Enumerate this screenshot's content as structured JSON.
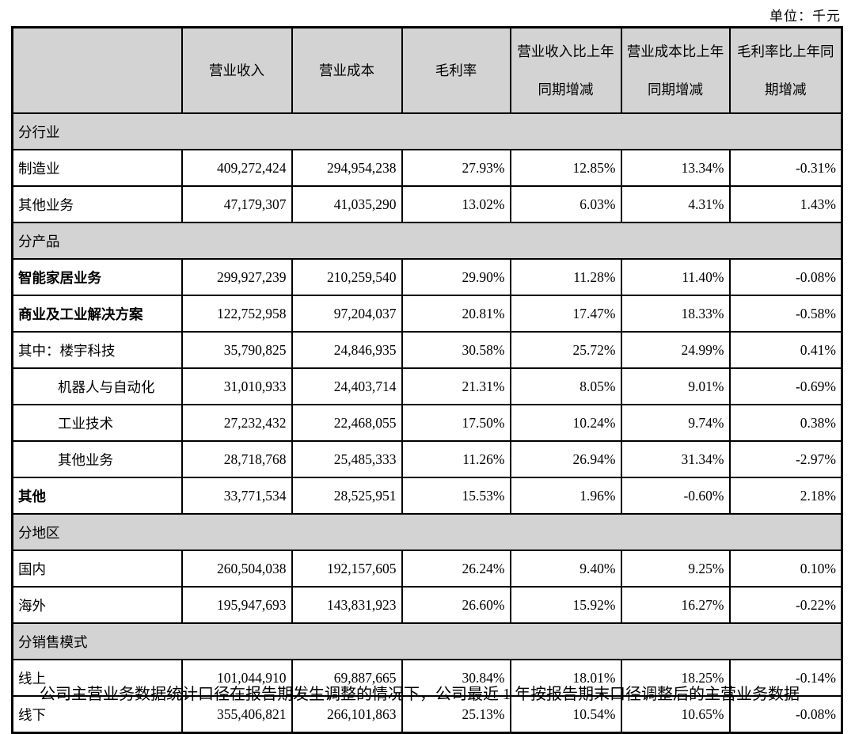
{
  "unit_label": "单位：千元",
  "table": {
    "headers": [
      {
        "lines": [
          "营业收入"
        ]
      },
      {
        "lines": [
          "营业成本"
        ]
      },
      {
        "lines": [
          "毛利率"
        ]
      },
      {
        "lines": [
          "营业收入比上年",
          "同期增减"
        ]
      },
      {
        "lines": [
          "营业成本比上年",
          "同期增减"
        ]
      },
      {
        "lines": [
          "毛利率比上年同",
          "期增减"
        ]
      }
    ],
    "rows": [
      {
        "type": "section",
        "label": "分行业"
      },
      {
        "type": "data",
        "label": "制造业",
        "bold": false,
        "indent": false,
        "values": [
          "409,272,424",
          "294,954,238",
          "27.93%",
          "12.85%",
          "13.34%",
          "-0.31%"
        ]
      },
      {
        "type": "data",
        "label": "其他业务",
        "bold": false,
        "indent": false,
        "values": [
          "47,179,307",
          "41,035,290",
          "13.02%",
          "6.03%",
          "4.31%",
          "1.43%"
        ]
      },
      {
        "type": "section",
        "label": "分产品"
      },
      {
        "type": "data",
        "label": "智能家居业务",
        "bold": true,
        "indent": false,
        "values": [
          "299,927,239",
          "210,259,540",
          "29.90%",
          "11.28%",
          "11.40%",
          "-0.08%"
        ]
      },
      {
        "type": "data",
        "label": "商业及工业解决方案",
        "bold": true,
        "indent": false,
        "values": [
          "122,752,958",
          "97,204,037",
          "20.81%",
          "17.47%",
          "18.33%",
          "-0.58%"
        ]
      },
      {
        "type": "data",
        "label": "其中：楼宇科技",
        "bold": false,
        "indent": false,
        "values": [
          "35,790,825",
          "24,846,935",
          "30.58%",
          "25.72%",
          "24.99%",
          "0.41%"
        ]
      },
      {
        "type": "data",
        "label": "机器人与自动化",
        "bold": false,
        "indent": true,
        "values": [
          "31,010,933",
          "24,403,714",
          "21.31%",
          "8.05%",
          "9.01%",
          "-0.69%"
        ]
      },
      {
        "type": "data",
        "label": "工业技术",
        "bold": false,
        "indent": true,
        "values": [
          "27,232,432",
          "22,468,055",
          "17.50%",
          "10.24%",
          "9.74%",
          "0.38%"
        ]
      },
      {
        "type": "data",
        "label": "其他业务",
        "bold": false,
        "indent": true,
        "values": [
          "28,718,768",
          "25,485,333",
          "11.26%",
          "26.94%",
          "31.34%",
          "-2.97%"
        ]
      },
      {
        "type": "data",
        "label": "其他",
        "bold": true,
        "indent": false,
        "values": [
          "33,771,534",
          "28,525,951",
          "15.53%",
          "1.96%",
          "-0.60%",
          "2.18%"
        ]
      },
      {
        "type": "section",
        "label": "分地区"
      },
      {
        "type": "data",
        "label": "国内",
        "bold": false,
        "indent": false,
        "values": [
          "260,504,038",
          "192,157,605",
          "26.24%",
          "9.40%",
          "9.25%",
          "0.10%"
        ]
      },
      {
        "type": "data",
        "label": "海外",
        "bold": false,
        "indent": false,
        "values": [
          "195,947,693",
          "143,831,923",
          "26.60%",
          "15.92%",
          "16.27%",
          "-0.22%"
        ]
      },
      {
        "type": "section",
        "label": "分销售模式"
      },
      {
        "type": "data",
        "label": "线上",
        "bold": false,
        "indent": false,
        "values": [
          "101,044,910",
          "69,887,665",
          "30.84%",
          "18.01%",
          "18.25%",
          "-0.14%"
        ]
      },
      {
        "type": "data",
        "label": "线下",
        "bold": false,
        "indent": false,
        "values": [
          "355,406,821",
          "266,101,863",
          "25.13%",
          "10.54%",
          "10.65%",
          "-0.08%"
        ]
      }
    ]
  },
  "footnote": "公司主营业务数据统计口径在报告期发生调整的情况下，公司最近 1 年按报告期末口径调整后的主营业务数据"
}
